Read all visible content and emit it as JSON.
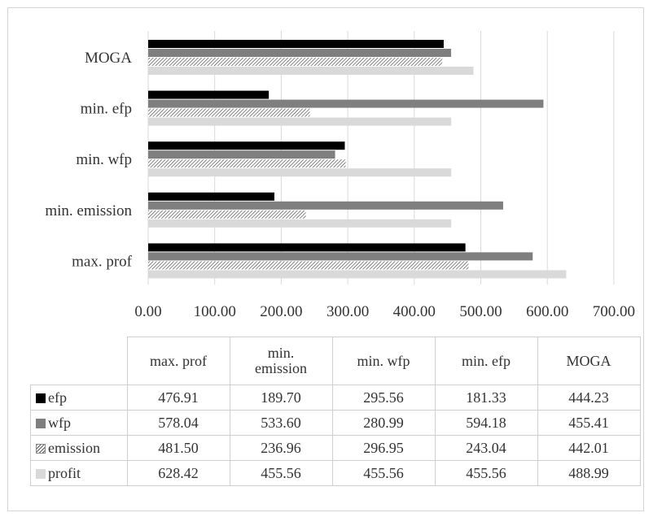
{
  "chart_data": {
    "type": "bar",
    "orientation": "horizontal",
    "categories": [
      "max. prof",
      "min. emission",
      "min. wfp",
      "min. efp",
      "MOGA"
    ],
    "category_labels": {
      "max. prof": "max. prof",
      "min. emission": "min. emission",
      "min. wfp": "min. wfp",
      "min. efp": "min. efp",
      "MOGA": "MOGA"
    },
    "series": [
      {
        "name": "efp",
        "color": "#000000",
        "pattern": "solid",
        "values": [
          476.91,
          189.7,
          295.56,
          181.33,
          444.23
        ]
      },
      {
        "name": "wfp",
        "color": "#7f7f7f",
        "pattern": "solid",
        "values": [
          578.04,
          533.6,
          280.99,
          594.18,
          455.41
        ]
      },
      {
        "name": "emission",
        "color": "#555555",
        "pattern": "diagonal-hatch",
        "values": [
          481.5,
          236.96,
          296.95,
          243.04,
          442.01
        ]
      },
      {
        "name": "profit",
        "color": "#d9d9d9",
        "pattern": "solid",
        "values": [
          628.42,
          455.56,
          455.56,
          455.56,
          488.99
        ]
      }
    ],
    "xlim": [
      0,
      700
    ],
    "xticks": [
      "0.00",
      "100.00",
      "200.00",
      "300.00",
      "400.00",
      "500.00",
      "600.00",
      "700.00"
    ],
    "grid": true,
    "legend": "data-table-below",
    "title": "",
    "xlabel": "",
    "ylabel": ""
  },
  "table": {
    "header": [
      "max. prof",
      "min.\nemission",
      "min. wfp",
      "min. efp",
      "MOGA"
    ],
    "rows": [
      {
        "series": "efp",
        "cells": [
          "476.91",
          "189.70",
          "295.56",
          "181.33",
          "444.23"
        ]
      },
      {
        "series": "wfp",
        "cells": [
          "578.04",
          "533.60",
          "280.99",
          "594.18",
          "455.41"
        ]
      },
      {
        "series": "emission",
        "cells": [
          "481.50",
          "236.96",
          "296.95",
          "243.04",
          "442.01"
        ]
      },
      {
        "series": "profit",
        "cells": [
          "628.42",
          "455.56",
          "455.56",
          "455.56",
          "488.99"
        ]
      }
    ]
  }
}
